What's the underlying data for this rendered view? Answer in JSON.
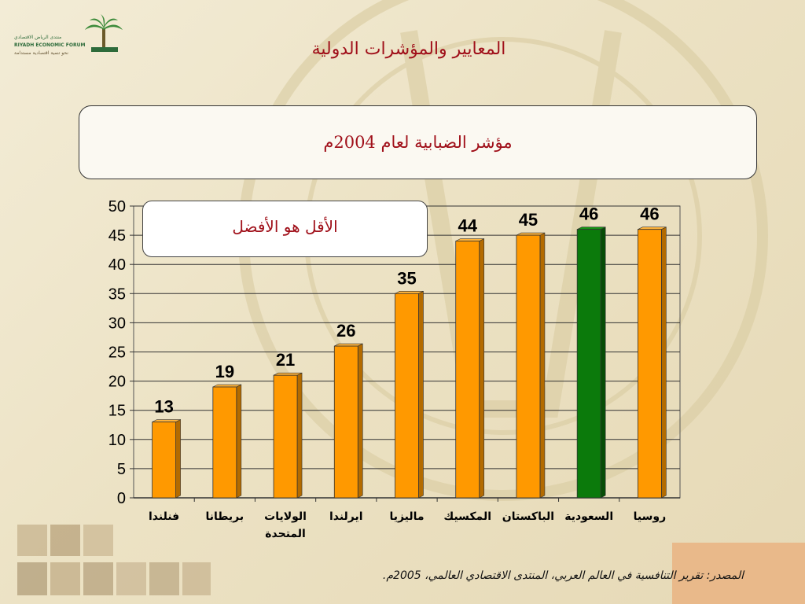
{
  "logo": {
    "arabic_top": "منتدى الرياض الاقتصادي",
    "english": "RIYADH ECONOMIC FORUM",
    "arabic_bottom": "نحو تنمية اقتصادية مستدامة"
  },
  "slide_title": "المعايير والمؤشرات الدولية",
  "note": "الأقل هو الأفضل",
  "source": "المصدر: تقرير التنافسية في العالم العربي، المنتدى الاقتصادي العالمي، 2005م.",
  "colors": {
    "bar": "#ff9900",
    "highlight": "#0b7a0b",
    "title": "#a0101a"
  },
  "chart_data": {
    "type": "bar",
    "title": "مؤشر الضبابية لعام 2004م",
    "categories": [
      [
        "فنلندا"
      ],
      [
        "بريطانا"
      ],
      [
        "الولايات",
        "المتحدة"
      ],
      [
        "ايرلندا"
      ],
      [
        "ماليزيا"
      ],
      [
        "المكسيك"
      ],
      [
        "الباكستان"
      ],
      [
        "السعودية"
      ],
      [
        "روسيا"
      ]
    ],
    "values": [
      13,
      19,
      21,
      26,
      35,
      44,
      45,
      46,
      46
    ],
    "data_labels": [
      "13",
      "19",
      "21",
      "26",
      "35",
      "44",
      "45",
      "46",
      "46"
    ],
    "highlight_index": 7,
    "ylim": [
      0,
      50
    ],
    "yticks": [
      0,
      5,
      10,
      15,
      20,
      25,
      30,
      35,
      40,
      45,
      50
    ],
    "grid": true,
    "xlabel": "",
    "ylabel": ""
  }
}
